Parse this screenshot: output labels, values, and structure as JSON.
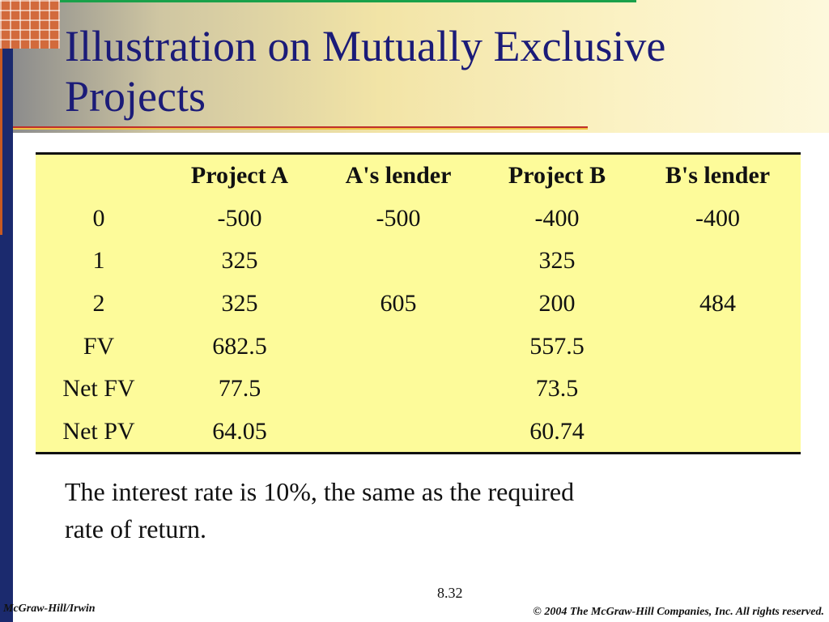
{
  "slide": {
    "title": "Illustration on Mutually Exclusive Projects",
    "table": {
      "headers": [
        "",
        "Project A",
        "A's lender",
        "Project B",
        "B's lender"
      ],
      "rows": [
        [
          "0",
          "-500",
          "-500",
          "-400",
          "-400"
        ],
        [
          "1",
          "325",
          "",
          "325",
          ""
        ],
        [
          "2",
          "325",
          "605",
          "200",
          "484"
        ],
        [
          "FV",
          "682.5",
          "",
          "557.5",
          ""
        ],
        [
          "Net FV",
          "77.5",
          "",
          "73.5",
          ""
        ],
        [
          "Net PV",
          "64.05",
          "",
          "60.74",
          ""
        ]
      ]
    },
    "note": "The interest rate is 10%, the same as the required rate of return.",
    "slide_number": "8.32"
  },
  "footer": {
    "publisher": "McGraw-Hill/Irwin",
    "copyright": "© 2004 The McGraw-Hill Companies, Inc. All rights reserved."
  },
  "colors": {
    "title": "#1b1b78",
    "table_background": "#fdfb9a",
    "accent_blue": "#1b2a6e",
    "accent_orange": "#c85a22",
    "accent_green": "#1aa14a",
    "underline_red": "#c0302a"
  }
}
